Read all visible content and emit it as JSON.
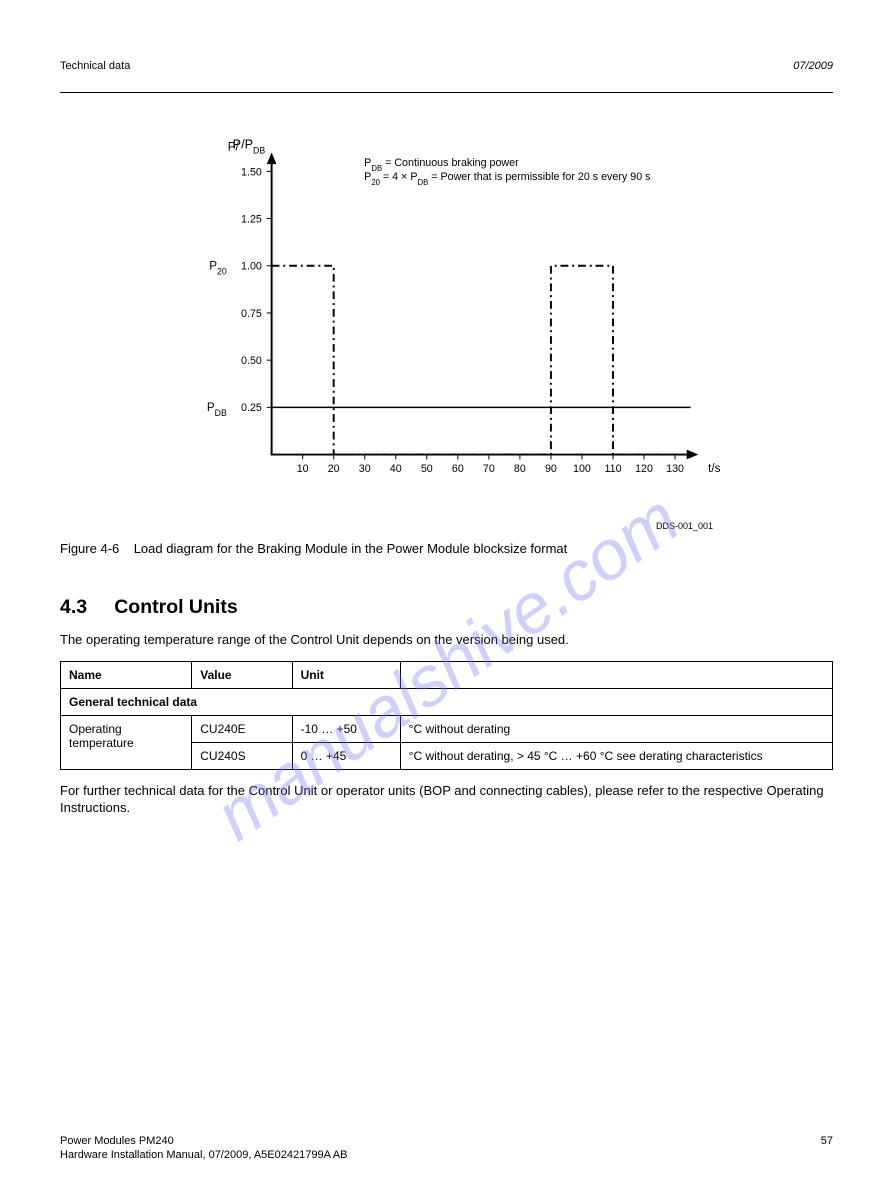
{
  "header": {
    "left": "Technical data",
    "right": "07/2009"
  },
  "figure": {
    "title_line1": "PDB = Continuous braking power",
    "title_line2": "P20 = 4 × PDB = Power that is permissible for 20 s every 90 s",
    "x_axis_label": "t/s",
    "y_axis_label": "P/PDB",
    "x_ticks": [
      10,
      20,
      30,
      40,
      50,
      60,
      70,
      80,
      90,
      100,
      110,
      120,
      130
    ],
    "y_ticks": [
      0.25,
      0.5,
      0.75,
      1.0,
      1.25,
      1.5
    ],
    "y_tick_labels": [
      "0.25",
      "0.50",
      "0.75",
      "1.00",
      "1.25",
      "1.50"
    ],
    "p20_label": "P20",
    "pdb_label": "PDB",
    "x_range": [
      0,
      135
    ],
    "y_range": [
      0,
      1.6
    ],
    "load_cycle_curve": {
      "color": "#000000",
      "style": "dash-dot",
      "width": 2,
      "points": [
        [
          0,
          1.0
        ],
        [
          20,
          1.0
        ],
        [
          20,
          0
        ],
        [
          90,
          0
        ],
        [
          90,
          1.0
        ],
        [
          110,
          1.0
        ],
        [
          110,
          0
        ],
        [
          135,
          0
        ]
      ]
    },
    "pdb_line": {
      "color": "#000000",
      "style": "solid",
      "width": 1.5,
      "y": 0.25,
      "x0": 0,
      "x1": 135
    },
    "id_label": "DDS-001_001"
  },
  "caption": {
    "prefix": "Figure 4-6",
    "text": "Load diagram for the Braking Module in the Power Module blocksize format"
  },
  "section": {
    "number": "4.3",
    "title": "Control Units"
  },
  "para1": "The operating temperature range of the Control Unit depends on the version being used.",
  "table": {
    "columns": [
      "Name",
      "Value",
      "Unit",
      ""
    ],
    "rows": [
      [
        [
          "General technical data",
          "",
          4
        ]
      ],
      [
        [
          "Operating temperature",
          "",
          1
        ],
        [
          "CU240E",
          "",
          1
        ],
        [
          "-10 … +50",
          "",
          1
        ],
        [
          "°C without derating",
          "",
          1
        ]
      ],
      [
        [
          "CU240S",
          "",
          1
        ],
        [
          "0 … +45",
          "",
          1
        ],
        [
          "°C without derating, > 45 °C … +60 °C see derating characteristics",
          "",
          1
        ]
      ]
    ],
    "col_widths": [
      "17%",
      "13%",
      "14%",
      "56%"
    ]
  },
  "para2": "For further technical data for the Control Unit or operator units (BOP and connecting cables), please refer to the respective Operating Instructions.",
  "watermark": "manualshive.com",
  "footer": {
    "left": "Hardware Installation Manual, 07/2009, A5E02421799A AB",
    "title": "Power Modules PM240",
    "page": "57"
  }
}
